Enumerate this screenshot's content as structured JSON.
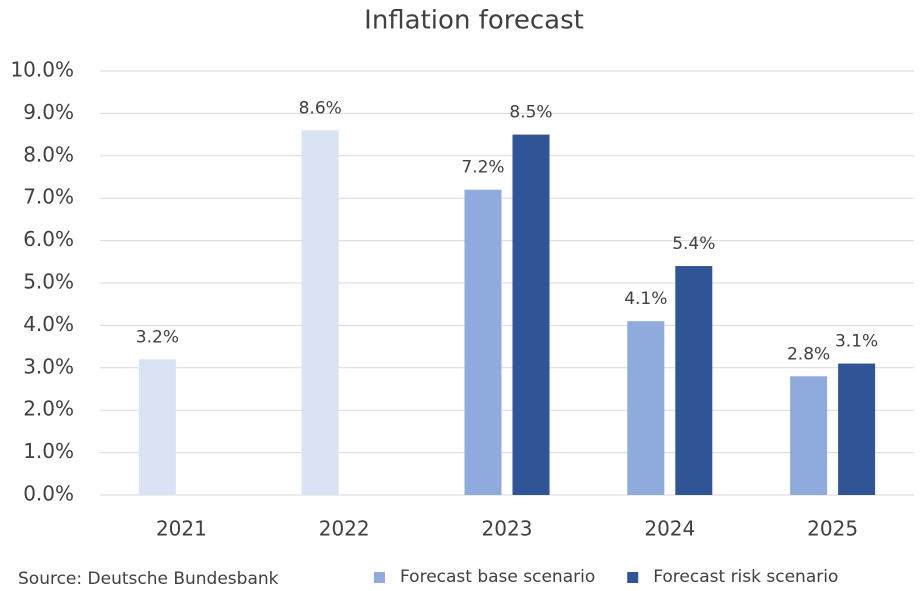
{
  "chart_data": {
    "type": "bar",
    "title": "Inflation forecast",
    "source": "Source: Deutsche Bundesbank",
    "categories": [
      "2021",
      "2022",
      "2023",
      "2024",
      "2025"
    ],
    "series": [
      {
        "color": "#dae3f3",
        "values": [
          3.2,
          8.6,
          null,
          null,
          null
        ],
        "value_labels": [
          "3.2%",
          "8.6%",
          null,
          null,
          null
        ]
      },
      {
        "name": "Forecast base scenario",
        "color": "#8faadc",
        "values": [
          null,
          null,
          7.2,
          4.1,
          2.8
        ],
        "value_labels": [
          null,
          null,
          "7.2%",
          "4.1%",
          "2.8%"
        ]
      },
      {
        "name": "Forecast risk scenario",
        "color": "#2f5597",
        "values": [
          null,
          null,
          8.5,
          5.4,
          3.1
        ],
        "value_labels": [
          null,
          null,
          "8.5%",
          "5.4%",
          "3.1%"
        ]
      }
    ],
    "ylim": [
      0,
      10
    ],
    "yticks": [
      {
        "value": 0,
        "label": "0.0%"
      },
      {
        "value": 1,
        "label": "1.0%"
      },
      {
        "value": 2,
        "label": "2.0%"
      },
      {
        "value": 3,
        "label": "3.0%"
      },
      {
        "value": 4,
        "label": "4.0%"
      },
      {
        "value": 5,
        "label": "5.0%"
      },
      {
        "value": 6,
        "label": "6.0%"
      },
      {
        "value": 7,
        "label": "7.0%"
      },
      {
        "value": 8,
        "label": "8.0%"
      },
      {
        "value": 9,
        "label": "9.0%"
      },
      {
        "value": 10,
        "label": "10.0%"
      }
    ],
    "grid": true
  }
}
